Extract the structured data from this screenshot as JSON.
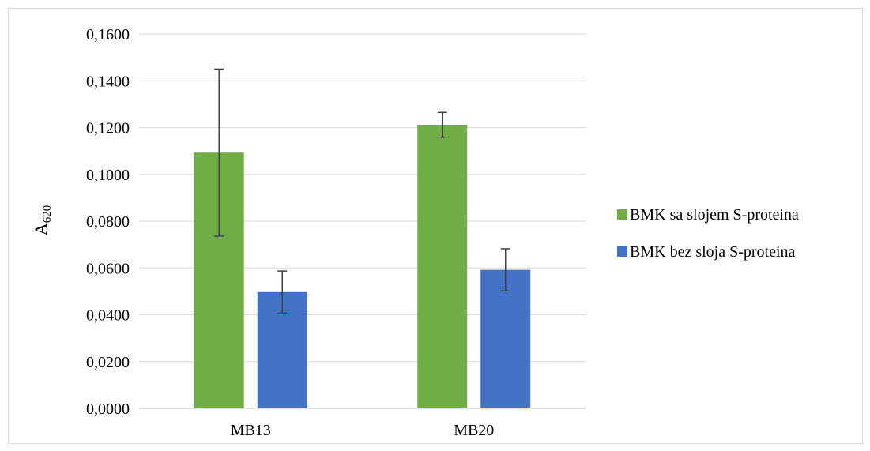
{
  "chart_data": {
    "type": "bar",
    "title": "",
    "xlabel": "",
    "ylabel": {
      "base": "A",
      "subscript": "620"
    },
    "categories": [
      "MB13",
      "MB20"
    ],
    "series": [
      {
        "name": "BMK sa slojem S-proteina",
        "color": "#70AD47",
        "values": [
          0.1093,
          0.1212
        ],
        "errors": [
          0.0357,
          0.0053
        ]
      },
      {
        "name": "BMK bez sloja S-proteina",
        "color": "#4472C4",
        "values": [
          0.0497,
          0.0592
        ],
        "errors": [
          0.009,
          0.009
        ]
      }
    ],
    "ylim": [
      0,
      0.16
    ],
    "yticks": [
      0,
      0.02,
      0.04,
      0.06,
      0.08,
      0.1,
      0.12,
      0.14,
      0.16
    ],
    "ytick_labels": [
      "0,0000",
      "0,0200",
      "0,0400",
      "0,0600",
      "0,0800",
      "0,1000",
      "0,1200",
      "0,1400",
      "0,1600"
    ],
    "grid": true,
    "legend_position": "right"
  }
}
